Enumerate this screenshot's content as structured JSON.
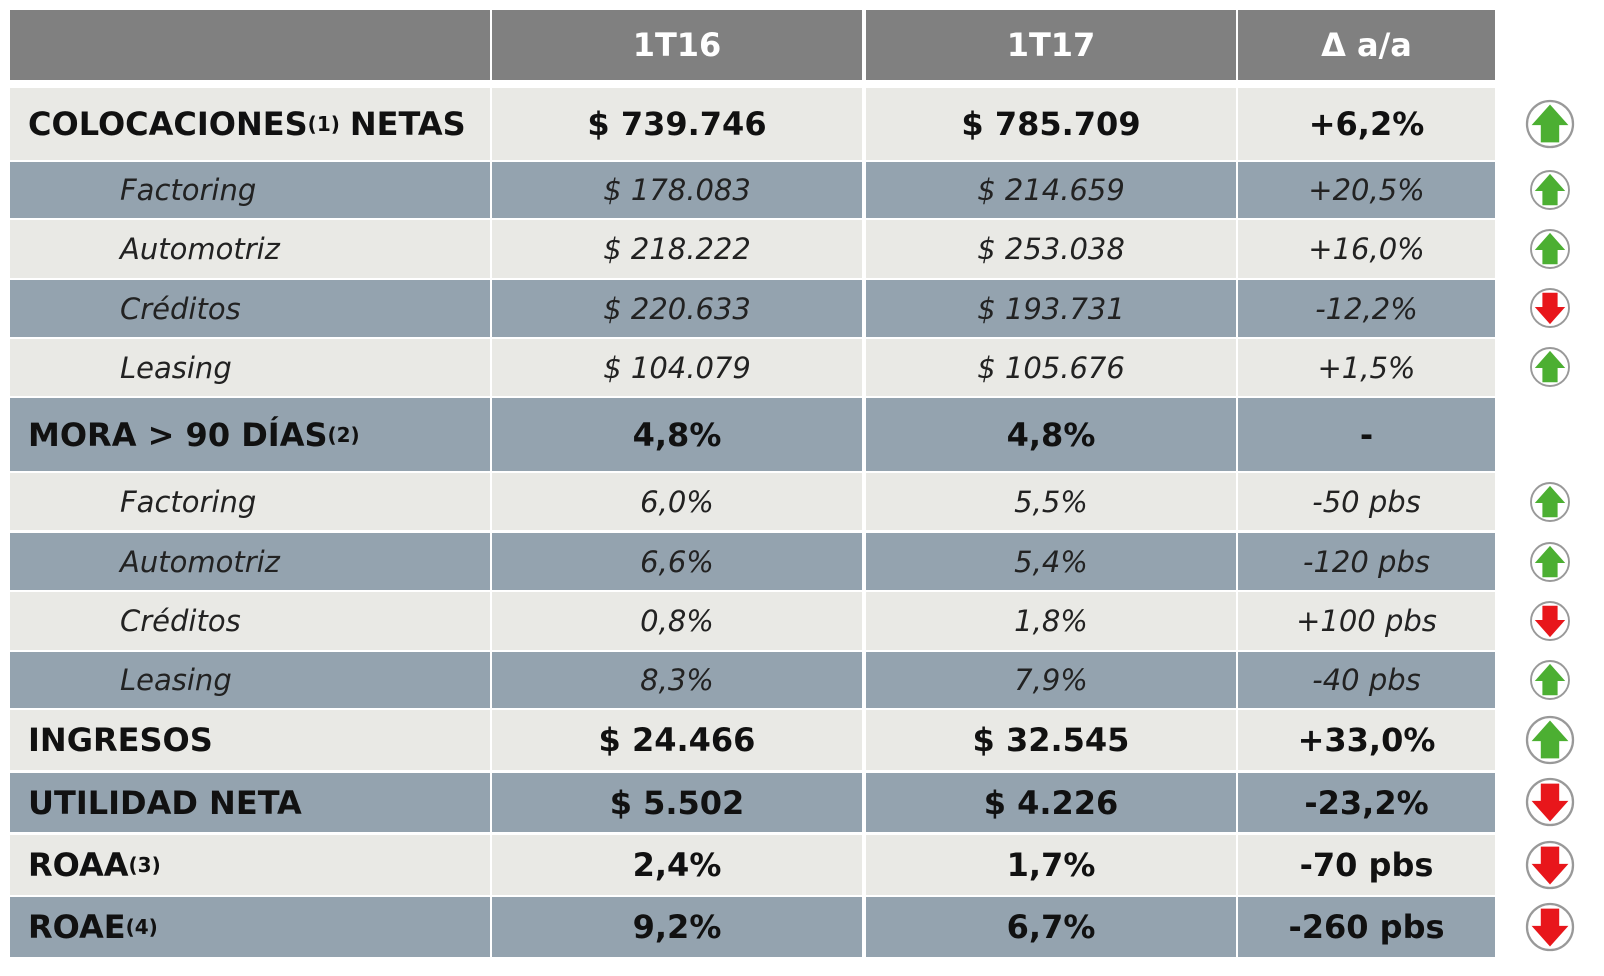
{
  "table": {
    "columns": [
      "1T16",
      "1T17",
      "Δ a/a"
    ],
    "rows": [
      {
        "label": "COLOCACIONES",
        "note": "(1)",
        "label_end": "NETAS",
        "bold": true,
        "values": [
          "$ 739.746",
          "$ 785.709",
          "+6,2%"
        ]
      },
      {
        "label": "Factoring",
        "values": [
          "$ 178.083",
          "$ 214.659",
          "+20,5%"
        ]
      },
      {
        "label": "Automotriz",
        "values": [
          "$ 218.222",
          "$ 253.038",
          "+16,0%"
        ]
      },
      {
        "label": "Créditos",
        "values": [
          "$ 220.633",
          "$ 193.731",
          "-12,2%"
        ]
      },
      {
        "label": "Leasing",
        "values": [
          "$ 104.079",
          "$ 105.676",
          "+1,5%"
        ]
      },
      {
        "label": "MORA > 90 DÍAS",
        "note": "(2)",
        "bold": true,
        "values": [
          "4,8%",
          "4,8%",
          "-"
        ]
      },
      {
        "label": "Factoring",
        "values": [
          "6,0%",
          "5,5%",
          "-50 pbs"
        ]
      },
      {
        "label": "Automotriz",
        "values": [
          "6,6%",
          "5,4%",
          "-120 pbs"
        ]
      },
      {
        "label": "Créditos",
        "values": [
          "0,8%",
          "1,8%",
          "+100 pbs"
        ]
      },
      {
        "label": "Leasing",
        "values": [
          "8,3%",
          "7,9%",
          "-40 pbs"
        ]
      },
      {
        "label": "INGRESOS",
        "bold": true,
        "values": [
          "$ 24.466",
          "$ 32.545",
          "+33,0%"
        ]
      },
      {
        "label": "UTILIDAD NETA",
        "bold": true,
        "values": [
          "$ 5.502",
          "$ 4.226",
          "-23,2%"
        ]
      },
      {
        "label": "ROAA",
        "note": "(3)",
        "bold": true,
        "values": [
          "2,4%",
          "1,7%",
          "-70 pbs"
        ]
      },
      {
        "label": "ROAE",
        "note": "(4)",
        "bold": true,
        "values": [
          "9,2%",
          "6,7%",
          "-260 pbs"
        ]
      }
    ]
  }
}
